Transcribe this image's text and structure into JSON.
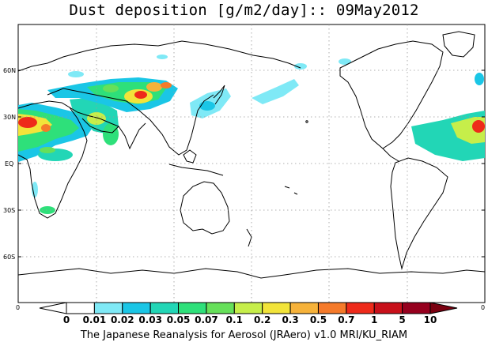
{
  "title": "Dust deposition [g/m2/day]:: 09May2012",
  "lat_labels": [
    "60N",
    "30N",
    "EQ",
    "30S",
    "60S"
  ],
  "lat_values": [
    60,
    30,
    0,
    -30,
    -60
  ],
  "lon_tick_labels": [
    "0",
    "0"
  ],
  "colorbar": {
    "labels": [
      "0",
      "0.01",
      "0.02",
      "0.03",
      "0.05",
      "0.07",
      "0.1",
      "0.2",
      "0.3",
      "0.5",
      "0.7",
      "1",
      "5",
      "10"
    ],
    "colors": [
      "#ffffff",
      "#ffffff",
      "#7fe9f6",
      "#1ac6e6",
      "#22d6b6",
      "#2ee07a",
      "#66e05a",
      "#c6ee4a",
      "#f2e43a",
      "#f6b23a",
      "#f57a2a",
      "#ee2a1a",
      "#c8101a",
      "#96001e",
      "#7a0010"
    ]
  },
  "footer": "The Japanese Reanalysis for Aerosol (JRAero) v1.0 MRI/KU_RIAM",
  "map_data": {
    "projection": "equirectangular",
    "lon_range": [
      0,
      360
    ],
    "lat_range": [
      -90,
      90
    ],
    "variable": "dust deposition",
    "units": "g/m2/day",
    "date": "09May2012"
  }
}
